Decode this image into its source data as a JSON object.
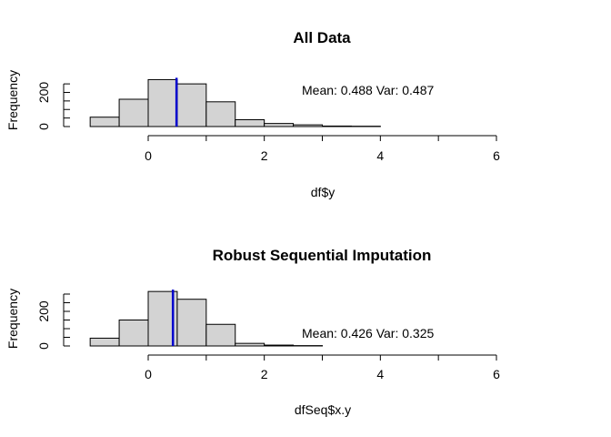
{
  "chart_data": [
    {
      "type": "bar",
      "title": "All Data",
      "xlabel": "df$y",
      "ylabel": "Frequency",
      "xlim": [
        -1,
        6
      ],
      "ylim": [
        0,
        280
      ],
      "x_ticks": [
        "0",
        "2",
        "4",
        "6"
      ],
      "y_ticks": [
        "0",
        "200"
      ],
      "bin_edges": [
        -1.0,
        -0.5,
        0.0,
        0.5,
        1.0,
        1.5,
        2.0,
        2.5,
        3.0,
        3.5,
        4.0
      ],
      "values": [
        55,
        160,
        275,
        250,
        145,
        40,
        18,
        10,
        3,
        2
      ],
      "bar_color": "#D3D3D3",
      "mean_line": {
        "x": 0.488,
        "color": "#0000CD"
      },
      "annotation": "Mean: 0.488   Var: 0.487",
      "grid": false
    },
    {
      "type": "bar",
      "title": "Robust Sequential Imputation",
      "xlabel": "dfSeq$x.y",
      "ylabel": "Frequency",
      "xlim": [
        -1,
        6
      ],
      "ylim": [
        0,
        320
      ],
      "x_ticks": [
        "0",
        "2",
        "4",
        "6"
      ],
      "y_ticks": [
        "0",
        "200"
      ],
      "bin_edges": [
        -1.0,
        -0.5,
        0.0,
        0.5,
        1.0,
        1.5,
        2.0,
        2.5,
        3.0
      ],
      "values": [
        45,
        150,
        315,
        270,
        125,
        15,
        5,
        2
      ],
      "bar_color": "#D3D3D3",
      "mean_line": {
        "x": 0.426,
        "color": "#0000CD"
      },
      "annotation": "Mean: 0.426   Var: 0.325",
      "grid": false
    }
  ]
}
